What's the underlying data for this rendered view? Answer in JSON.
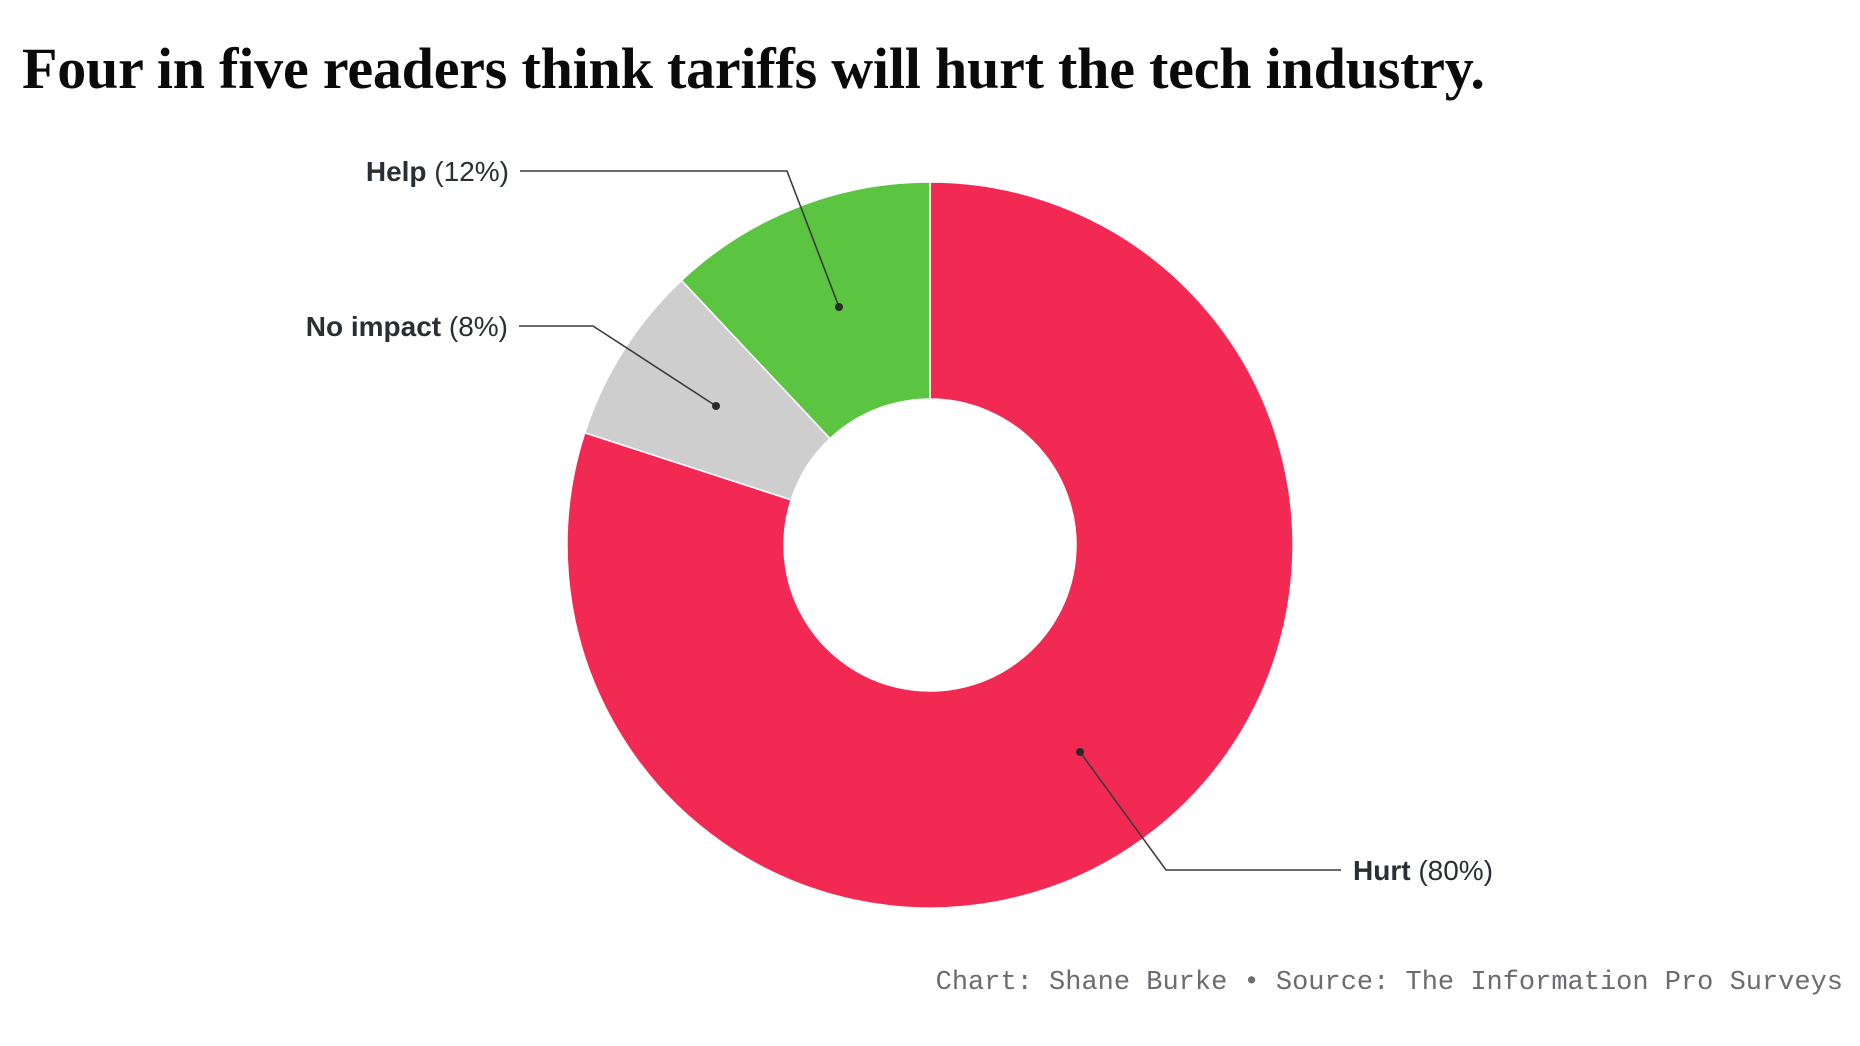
{
  "chart_data": {
    "type": "pie",
    "variant": "donut",
    "title": "Four in five readers think tariffs will hurt the tech industry.",
    "start": "12 o'clock, clockwise",
    "slices": [
      {
        "label": "Hurt",
        "value": 80,
        "display": "(80%)",
        "color": "#F22A53",
        "label_side": "right"
      },
      {
        "label": "No impact",
        "value": 8,
        "display": "(8%)",
        "color": "#CECECE",
        "label_side": "left"
      },
      {
        "label": "Help",
        "value": 12,
        "display": "(12%)",
        "color": "#5BC441",
        "label_side": "left"
      }
    ],
    "units": "percent of readers",
    "credit": "Chart: Shane Burke • Source: The Information Pro Surveys"
  },
  "header": {
    "title": "Four in five readers think tariffs will hurt the tech industry."
  },
  "footer": {
    "credit": "Chart: Shane Burke • Source: The Information Pro Surveys"
  }
}
